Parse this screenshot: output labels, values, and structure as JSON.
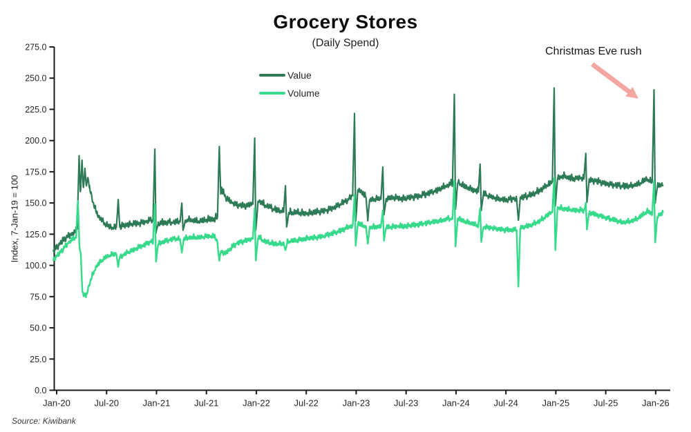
{
  "title": "Grocery Stores",
  "subtitle": "(Daily Spend)",
  "source": "Source: Kiwibank",
  "annotation": {
    "text": "Christmas Eve rush",
    "arrow_color": "#f5a6a0"
  },
  "axes": {
    "y_label": "Index, 7-Jan-19 = 100",
    "y_ticks": [
      "0.0",
      "25.0",
      "50.0",
      "75.0",
      "100.0",
      "125.0",
      "150.0",
      "175.0",
      "200.0",
      "225.0",
      "250.0",
      "275.0"
    ],
    "x_ticks": [
      "Jan-20",
      "Jul-20",
      "Jan-21",
      "Jul-21",
      "Jan-22",
      "Jul-22",
      "Jan-23",
      "Jul-23",
      "Jan-24",
      "Jul-24",
      "Jan-25",
      "Jul-25",
      "Jan-26"
    ]
  },
  "chart_data": {
    "type": "line",
    "title": "Grocery Stores (Daily Spend)",
    "xlabel": "",
    "ylabel": "Index, 7-Jan-19 = 100",
    "ylim": [
      0,
      275
    ],
    "x_unit": "months since Jan-2020",
    "x_range": [
      -0.4,
      72.9
    ],
    "grid": false,
    "legend_position": "top-center",
    "noise": {
      "value_amp": 2.4,
      "volume_amp": 1.9,
      "seed": 11
    },
    "series": [
      {
        "name": "Value",
        "color": "#2c7a56",
        "keypoints": [
          [
            -0.4,
            111
          ],
          [
            0,
            114
          ],
          [
            0.8,
            120
          ],
          [
            1.6,
            124
          ],
          [
            2.3,
            127
          ],
          [
            2.6,
            133
          ],
          [
            2.9,
            155
          ],
          [
            3.3,
            158
          ],
          [
            3.8,
            165
          ],
          [
            4.1,
            158
          ],
          [
            4.5,
            147
          ],
          [
            5,
            139
          ],
          [
            5.5,
            135
          ],
          [
            6,
            132
          ],
          [
            6.5,
            130
          ],
          [
            7,
            130
          ],
          [
            7.8,
            131
          ],
          [
            8.5,
            132
          ],
          [
            9.5,
            133
          ],
          [
            10.5,
            134
          ],
          [
            11.4,
            136
          ],
          [
            12.2,
            133
          ],
          [
            13,
            134
          ],
          [
            14,
            134
          ],
          [
            15,
            135
          ],
          [
            16,
            136
          ],
          [
            17,
            135
          ],
          [
            18,
            136
          ],
          [
            19,
            137
          ],
          [
            19.4,
            139
          ],
          [
            19.8,
            161
          ],
          [
            20.3,
            154
          ],
          [
            21,
            150
          ],
          [
            21.8,
            148
          ],
          [
            22.5,
            147
          ],
          [
            23.5,
            149
          ],
          [
            24.3,
            151
          ],
          [
            25,
            148
          ],
          [
            26,
            145
          ],
          [
            27,
            143
          ],
          [
            28,
            142
          ],
          [
            29,
            142
          ],
          [
            30,
            141
          ],
          [
            31,
            142
          ],
          [
            32,
            143
          ],
          [
            33,
            145
          ],
          [
            34,
            148
          ],
          [
            35,
            152
          ],
          [
            36.3,
            161
          ],
          [
            36.9,
            156
          ],
          [
            37.8,
            152
          ],
          [
            38.5,
            153
          ],
          [
            39.5,
            153
          ],
          [
            40.5,
            154
          ],
          [
            41.5,
            153
          ],
          [
            42.5,
            154
          ],
          [
            43.5,
            155
          ],
          [
            44.5,
            157
          ],
          [
            45.5,
            159
          ],
          [
            46.5,
            162
          ],
          [
            47.3,
            165
          ],
          [
            48.3,
            166
          ],
          [
            49,
            163
          ],
          [
            50,
            160
          ],
          [
            51,
            158
          ],
          [
            52,
            155
          ],
          [
            53,
            153
          ],
          [
            54,
            152
          ],
          [
            55,
            153
          ],
          [
            56,
            154
          ],
          [
            57,
            156
          ],
          [
            58,
            159
          ],
          [
            59,
            164
          ],
          [
            60.3,
            170
          ],
          [
            61,
            171
          ],
          [
            62,
            169
          ],
          [
            63,
            170
          ],
          [
            64,
            168
          ],
          [
            65,
            167
          ],
          [
            66,
            165
          ],
          [
            67,
            164
          ],
          [
            68,
            163
          ],
          [
            69,
            163
          ],
          [
            70,
            165
          ],
          [
            71,
            169
          ],
          [
            72.2,
            163
          ],
          [
            72.9,
            165
          ]
        ],
        "events": [
          {
            "m": 2.7,
            "peak": 188
          },
          {
            "m": 3.05,
            "peak": 184
          },
          {
            "m": 3.4,
            "peak": 178
          },
          {
            "m": 3.75,
            "peak": 170
          },
          {
            "m": 7.4,
            "peak": 152
          },
          {
            "m": 11.8,
            "peak": 193,
            "dip": 126
          },
          {
            "m": 15.05,
            "peak": 150,
            "dip": 128
          },
          {
            "m": 19.55,
            "peak": 195
          },
          {
            "m": 23.8,
            "peak": 202,
            "dip": 128
          },
          {
            "m": 27.5,
            "peak": 164,
            "dip": 130
          },
          {
            "m": 35.8,
            "peak": 222,
            "dip": 135
          },
          {
            "m": 37.4,
            "dip": 136
          },
          {
            "m": 39.2,
            "peak": 179,
            "dip": 140
          },
          {
            "m": 47.8,
            "peak": 237,
            "dip": 145
          },
          {
            "m": 50.9,
            "peak": 181,
            "dip": 144
          },
          {
            "m": 55.5,
            "dip": 136
          },
          {
            "m": 59.8,
            "peak": 242,
            "dip": 148
          },
          {
            "m": 63.6,
            "peak": 190,
            "dip": 150
          },
          {
            "m": 71.8,
            "peak": 240,
            "dip": 150
          }
        ]
      },
      {
        "name": "Volume",
        "color": "#36da8a",
        "keypoints": [
          [
            -0.4,
            104
          ],
          [
            0,
            107
          ],
          [
            0.8,
            113
          ],
          [
            1.6,
            119
          ],
          [
            2.2,
            122
          ],
          [
            2.6,
            122
          ],
          [
            2.9,
            108
          ],
          [
            3.1,
            79
          ],
          [
            3.3,
            75
          ],
          [
            3.6,
            76
          ],
          [
            3.9,
            84
          ],
          [
            4.3,
            92
          ],
          [
            4.8,
            99
          ],
          [
            5.3,
            103
          ],
          [
            5.9,
            106
          ],
          [
            6.5,
            108
          ],
          [
            7.2,
            109
          ],
          [
            7.8,
            107
          ],
          [
            8.5,
            110
          ],
          [
            9.5,
            113
          ],
          [
            10.5,
            116
          ],
          [
            11.4,
            119
          ],
          [
            12.2,
            117
          ],
          [
            13,
            119
          ],
          [
            14,
            121
          ],
          [
            15,
            121
          ],
          [
            16,
            122
          ],
          [
            17,
            122
          ],
          [
            18,
            123
          ],
          [
            19,
            123
          ],
          [
            19.8,
            111
          ],
          [
            20.3,
            109
          ],
          [
            21,
            114
          ],
          [
            21.8,
            118
          ],
          [
            22.5,
            119
          ],
          [
            23.5,
            121
          ],
          [
            24.3,
            122
          ],
          [
            25,
            119
          ],
          [
            26,
            117
          ],
          [
            27,
            117
          ],
          [
            28,
            119
          ],
          [
            29,
            120
          ],
          [
            30,
            121
          ],
          [
            31,
            122
          ],
          [
            32,
            123
          ],
          [
            33,
            125
          ],
          [
            34,
            127
          ],
          [
            35,
            130
          ],
          [
            36.3,
            133
          ],
          [
            37,
            131
          ],
          [
            38,
            130
          ],
          [
            39,
            131
          ],
          [
            40,
            130
          ],
          [
            41,
            131
          ],
          [
            42,
            131
          ],
          [
            43,
            132
          ],
          [
            44,
            133
          ],
          [
            45,
            134
          ],
          [
            46,
            135
          ],
          [
            47,
            137
          ],
          [
            48.3,
            137
          ],
          [
            49,
            135
          ],
          [
            50,
            133
          ],
          [
            51,
            131
          ],
          [
            52,
            130
          ],
          [
            53,
            129
          ],
          [
            54,
            128
          ],
          [
            55,
            128
          ],
          [
            56,
            130
          ],
          [
            57,
            132
          ],
          [
            58,
            135
          ],
          [
            59,
            140
          ],
          [
            60.3,
            146
          ],
          [
            61,
            145
          ],
          [
            62,
            144
          ],
          [
            63,
            144
          ],
          [
            64,
            142
          ],
          [
            65,
            140
          ],
          [
            66,
            138
          ],
          [
            67,
            136
          ],
          [
            68,
            134
          ],
          [
            69,
            135
          ],
          [
            70,
            138
          ],
          [
            71,
            143
          ],
          [
            72.2,
            139
          ],
          [
            72.9,
            142
          ]
        ],
        "events": [
          {
            "m": 2.55,
            "peak": 152
          },
          {
            "m": 7.4,
            "dip": 99
          },
          {
            "m": 11.8,
            "peak": 149,
            "dip": 103
          },
          {
            "m": 15.05,
            "dip": 110
          },
          {
            "m": 19.55,
            "dip": 104
          },
          {
            "m": 23.8,
            "peak": 146,
            "dip": 104
          },
          {
            "m": 27.5,
            "dip": 112
          },
          {
            "m": 35.8,
            "peak": 156,
            "dip": 116
          },
          {
            "m": 37.4,
            "dip": 117
          },
          {
            "m": 39.2,
            "peak": 144,
            "dip": 120
          },
          {
            "m": 47.8,
            "peak": 168,
            "dip": 115
          },
          {
            "m": 50.9,
            "peak": 146,
            "dip": 119
          },
          {
            "m": 55.5,
            "dip": 83
          },
          {
            "m": 59.8,
            "peak": 170,
            "dip": 112
          },
          {
            "m": 63.6,
            "peak": 150,
            "dip": 129
          },
          {
            "m": 71.8,
            "peak": 168,
            "dip": 118
          }
        ]
      }
    ]
  }
}
